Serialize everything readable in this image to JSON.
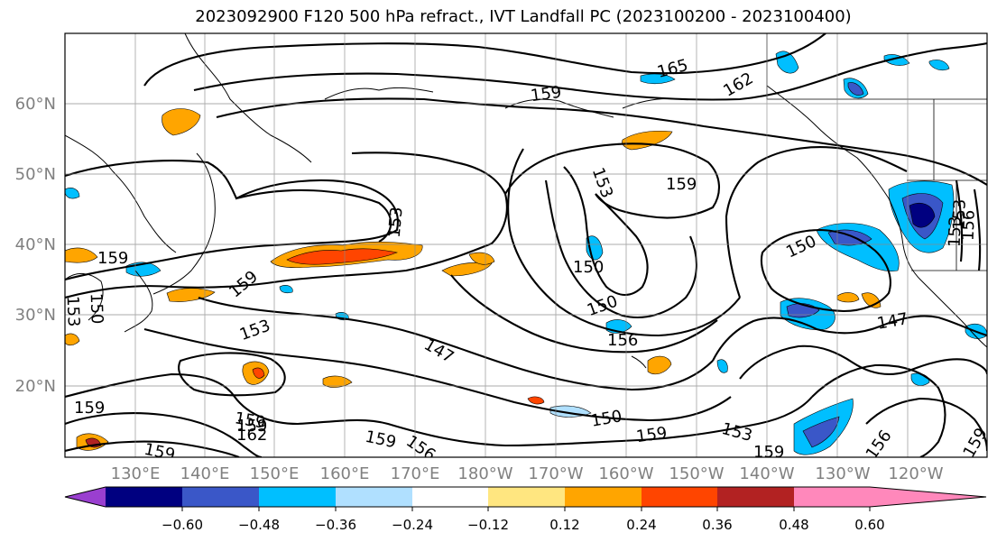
{
  "title": "2023092900 F120 500 hPa refract., IVT Landfall PC (2023100200 - 2023100400)",
  "lat_labels": [
    "60°N",
    "50°N",
    "40°N",
    "30°N",
    "20°N"
  ],
  "lon_labels": [
    "130°E",
    "140°E",
    "150°E",
    "160°E",
    "170°E",
    "180°W",
    "170°W",
    "160°W",
    "150°W",
    "140°W",
    "130°W",
    "120°W"
  ],
  "colorbar": {
    "colors": [
      "#9a3fd0",
      "#000080",
      "#3a57c8",
      "#00bfff",
      "#b0e0ff",
      "#ffffff",
      "#ffe680",
      "#ffa500",
      "#ff4500",
      "#b22222",
      "#ff88bb"
    ],
    "tick_labels": [
      "−0.60",
      "−0.48",
      "−0.36",
      "−0.24",
      "−0.12",
      "0.12",
      "0.24",
      "0.36",
      "0.48",
      "0.60"
    ]
  },
  "contour_labels": [
    "165",
    "162",
    "159",
    "159",
    "153",
    "153",
    "159",
    "150",
    "150",
    "159",
    "150",
    "156",
    "153",
    "153",
    "159",
    "150",
    "153",
    "147",
    "147",
    "156",
    "150",
    "159",
    "153",
    "159",
    "156",
    "159",
    "159",
    "162",
    "159",
    "156",
    "159",
    "150",
    "159",
    "153",
    "156"
  ]
}
